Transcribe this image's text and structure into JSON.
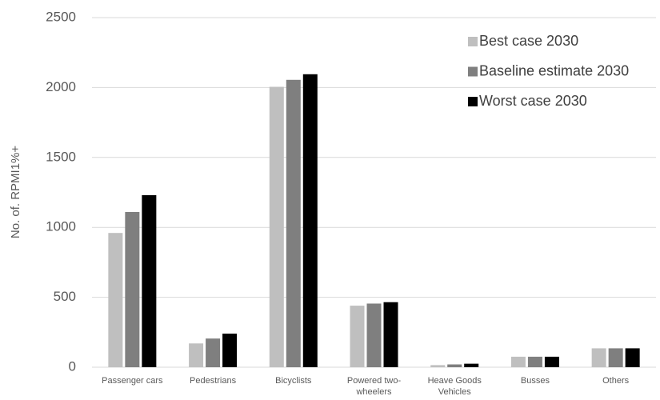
{
  "chart_data": {
    "type": "bar",
    "y_label": "No. of. RPMI1%+",
    "categories": [
      "Passenger cars",
      "Pedestrians",
      "Bicyclists",
      "Powered two-wheelers",
      "Heave Goods Vehicles",
      "Busses",
      "Others"
    ],
    "series": [
      {
        "name": "Best case 2030",
        "color": "#bfbfbf",
        "values": [
          960,
          170,
          2005,
          440,
          15,
          75,
          135
        ]
      },
      {
        "name": "Baseline estimate 2030",
        "color": "#7f7f7f",
        "values": [
          1110,
          205,
          2055,
          455,
          20,
          75,
          135
        ]
      },
      {
        "name": "Worst case 2030",
        "color": "#000000",
        "values": [
          1230,
          240,
          2095,
          465,
          25,
          75,
          135
        ]
      }
    ],
    "ylim": [
      0,
      2500
    ],
    "yticks": [
      0,
      500,
      1000,
      1500,
      2000,
      2500
    ],
    "grid": true,
    "legend": "top-right"
  }
}
